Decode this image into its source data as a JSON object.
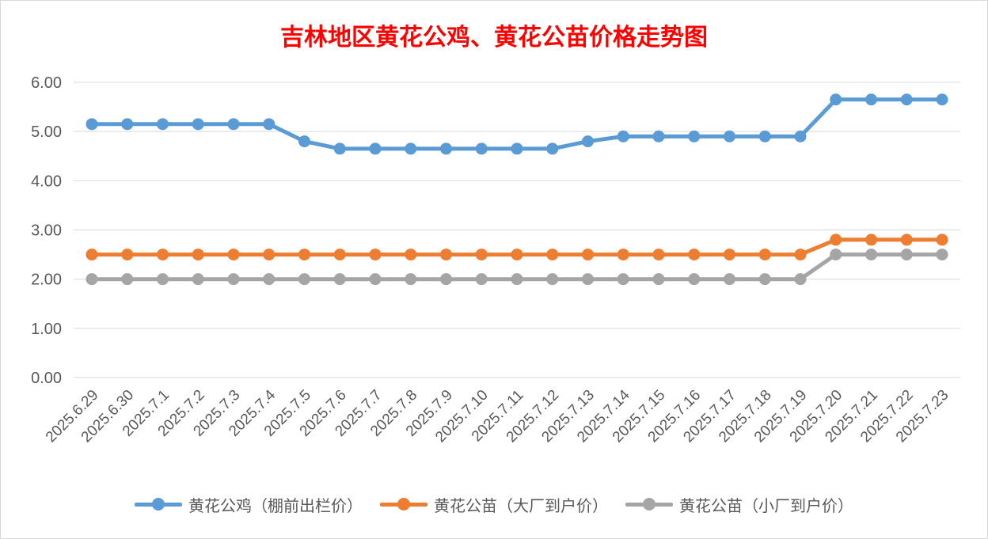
{
  "chart_data": {
    "type": "line",
    "title": "吉林地区黄花公鸡、黄花公苗价格走势图",
    "xlabel": "",
    "ylabel": "",
    "ylim": [
      0,
      6
    ],
    "yticks": [
      "0.00",
      "1.00",
      "2.00",
      "3.00",
      "4.00",
      "5.00",
      "6.00"
    ],
    "grid": true,
    "legend_position": "bottom",
    "categories": [
      "2025.6.29",
      "2025.6.30",
      "2025.7.1",
      "2025.7.2",
      "2025.7.3",
      "2025.7.4",
      "2025.7.5",
      "2025.7.6",
      "2025.7.7",
      "2025.7.8",
      "2025.7.9",
      "2025.7.10",
      "2025.7.11",
      "2025.7.12",
      "2025.7.13",
      "2025.7.14",
      "2025.7.15",
      "2025.7.16",
      "2025.7.17",
      "2025.7.18",
      "2025.7.19",
      "2025.7.20",
      "2025.7.21",
      "2025.7.22",
      "2025.7.23"
    ],
    "series": [
      {
        "name": "黄花公鸡（棚前出栏价）",
        "color": "#5b9bd5",
        "values": [
          5.15,
          5.15,
          5.15,
          5.15,
          5.15,
          5.15,
          4.8,
          4.65,
          4.65,
          4.65,
          4.65,
          4.65,
          4.65,
          4.65,
          4.8,
          4.9,
          4.9,
          4.9,
          4.9,
          4.9,
          4.9,
          5.65,
          5.65,
          5.65,
          5.65
        ]
      },
      {
        "name": "黄花公苗（大厂到户价）",
        "color": "#ed7d31",
        "values": [
          2.5,
          2.5,
          2.5,
          2.5,
          2.5,
          2.5,
          2.5,
          2.5,
          2.5,
          2.5,
          2.5,
          2.5,
          2.5,
          2.5,
          2.5,
          2.5,
          2.5,
          2.5,
          2.5,
          2.5,
          2.5,
          2.8,
          2.8,
          2.8,
          2.8
        ]
      },
      {
        "name": "黄花公苗（小厂到户价）",
        "color": "#a5a5a5",
        "values": [
          2.0,
          2.0,
          2.0,
          2.0,
          2.0,
          2.0,
          2.0,
          2.0,
          2.0,
          2.0,
          2.0,
          2.0,
          2.0,
          2.0,
          2.0,
          2.0,
          2.0,
          2.0,
          2.0,
          2.0,
          2.0,
          2.5,
          2.5,
          2.5,
          2.5
        ]
      }
    ],
    "gridline_color": "#d9d9d9"
  }
}
